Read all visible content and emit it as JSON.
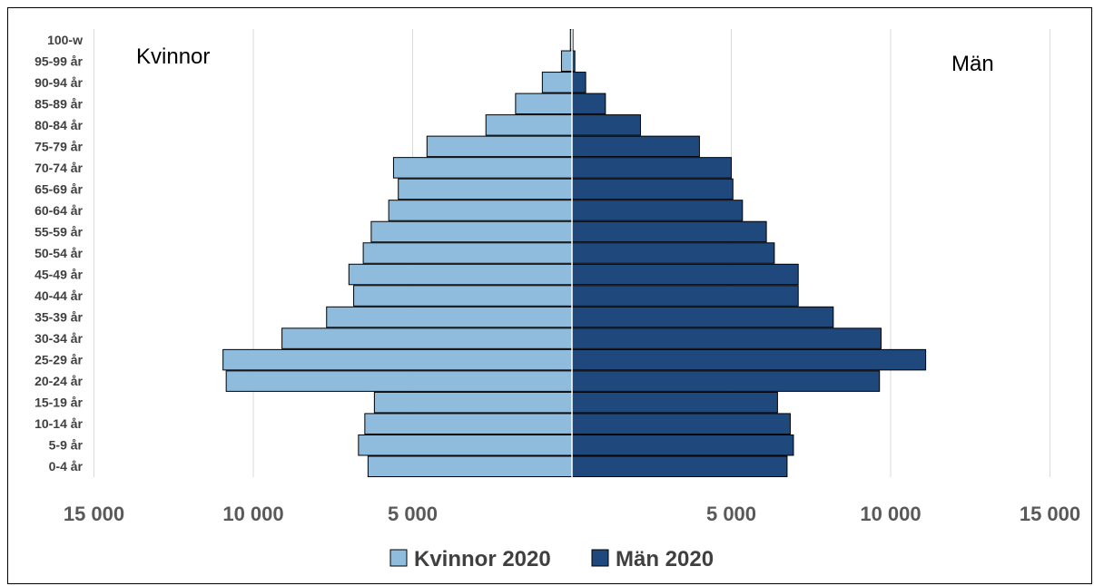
{
  "chart_data": {
    "type": "bar",
    "orientation": "horizontal",
    "layout": "population-pyramid",
    "categories": [
      "0-4 år",
      "5-9 år",
      "10-14 år",
      "15-19 år",
      "20-24 år",
      "25-29 år",
      "30-34 år",
      "35-39 år",
      "40-44 år",
      "45-49 år",
      "50-54 år",
      "55-59 år",
      "60-64 år",
      "65-69 år",
      "70-74 år",
      "75-79 år",
      "80-84 år",
      "85-89 år",
      "90-94 år",
      "95-99 år",
      "100-w"
    ],
    "series": [
      {
        "name": "Kvinnor 2020",
        "side": "left",
        "color": "#8fbcdc",
        "values": [
          6400,
          6700,
          6500,
          6200,
          10850,
          10950,
          9100,
          7700,
          6850,
          7000,
          6550,
          6300,
          5750,
          5450,
          5600,
          4550,
          2700,
          1770,
          930,
          330,
          50
        ]
      },
      {
        "name": "Män 2020",
        "side": "right",
        "color": "#1f497d",
        "values": [
          6750,
          6950,
          6850,
          6450,
          9650,
          11100,
          9700,
          8200,
          7100,
          7100,
          6350,
          6100,
          5350,
          5050,
          5000,
          4000,
          2150,
          1050,
          430,
          90,
          30
        ]
      }
    ],
    "ticks": {
      "values": [
        -15000,
        -10000,
        -5000,
        5000,
        10000,
        15000
      ],
      "labels": [
        "15 000",
        "10 000",
        "5 000",
        "5 000",
        "10 000",
        "15 000"
      ]
    },
    "xlim": [
      -15000,
      15000
    ],
    "grid": true,
    "legend_position": "bottom",
    "side_labels": {
      "left": "Kvinnor",
      "right": "Män"
    }
  }
}
